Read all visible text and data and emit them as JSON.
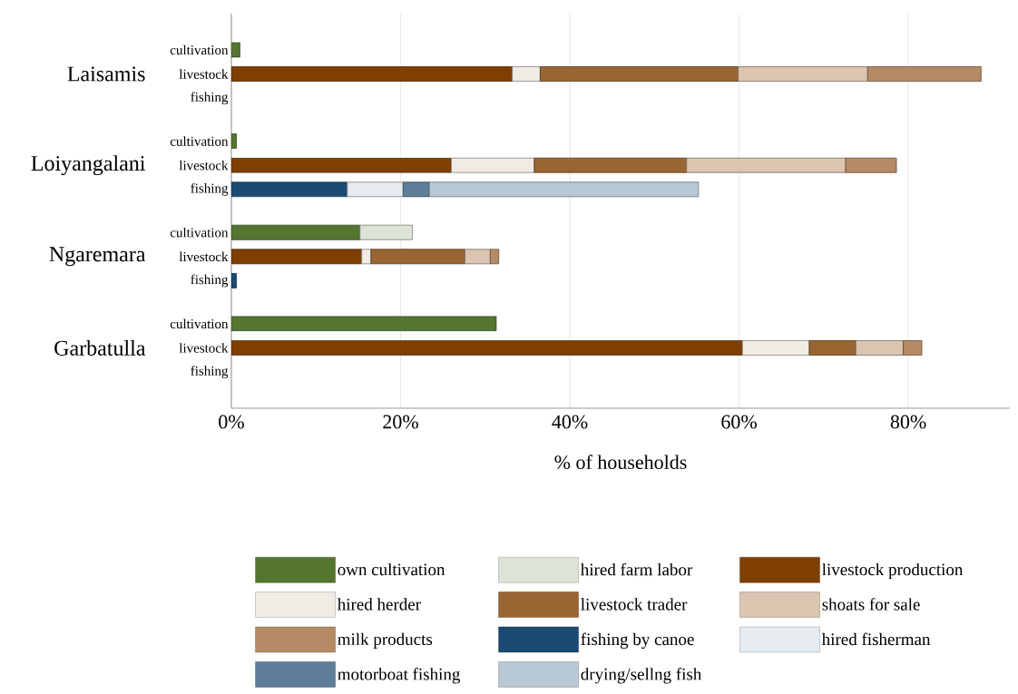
{
  "chart_data": {
    "type": "bar",
    "orientation": "horizontal",
    "stacked": true,
    "xlabel": "% of households",
    "categories": [
      "cultivation",
      "livestock",
      "fishing",
      "cultivation",
      "livestock",
      "fishing",
      "cultivation",
      "livestock",
      "fishing",
      "cultivation",
      "livestock",
      "fishing"
    ],
    "annotations": [
      "Laisamis",
      "Loiyangalani",
      "Ngaremara",
      "Garbatulla"
    ],
    "xlim": [
      0,
      92
    ],
    "xticks": [
      {
        "value": 0,
        "label": "0%"
      },
      {
        "value": 20,
        "label": "20%"
      },
      {
        "value": 40,
        "label": "40%"
      },
      {
        "value": 60,
        "label": "60%"
      },
      {
        "value": 80,
        "label": "80%"
      }
    ],
    "grid": "x",
    "legend": "bottom",
    "series": [
      {
        "name": "own cultivation",
        "color": "#557630",
        "values": [
          1.0,
          null,
          null,
          0.6,
          null,
          null,
          15.2,
          null,
          null,
          31.3,
          null,
          null
        ]
      },
      {
        "name": "hired farm labor",
        "color": "#dde3d6",
        "values": [
          null,
          null,
          null,
          null,
          null,
          null,
          6.2,
          null,
          null,
          null,
          null,
          null
        ]
      },
      {
        "name": "livestock production",
        "color": "#7f3f00",
        "values": [
          null,
          33.2,
          null,
          null,
          26.0,
          null,
          null,
          15.4,
          null,
          null,
          60.4,
          null
        ]
      },
      {
        "name": "hired herder",
        "color": "#f0ebe5",
        "values": [
          null,
          3.3,
          null,
          null,
          9.8,
          null,
          null,
          1.1,
          null,
          null,
          7.9,
          null
        ]
      },
      {
        "name": "livestock trader",
        "color": "#996633",
        "values": [
          null,
          23.4,
          null,
          null,
          18.0,
          null,
          null,
          11.1,
          null,
          null,
          5.5,
          null
        ]
      },
      {
        "name": "shoats for sale",
        "color": "#dbc5b0",
        "values": [
          null,
          15.3,
          null,
          null,
          18.8,
          null,
          null,
          3.0,
          null,
          null,
          5.6,
          null
        ]
      },
      {
        "name": "milk products",
        "color": "#b58b65",
        "values": [
          null,
          13.4,
          null,
          null,
          6.0,
          null,
          null,
          1.0,
          null,
          null,
          2.2,
          null
        ]
      },
      {
        "name": "fishing by canoe",
        "color": "#1b4a73",
        "values": [
          null,
          null,
          null,
          null,
          null,
          13.7,
          null,
          null,
          0.6,
          null,
          null,
          null
        ]
      },
      {
        "name": "hired fisherman",
        "color": "#e5ebef",
        "values": [
          null,
          null,
          null,
          null,
          null,
          6.6,
          null,
          null,
          null,
          null,
          null,
          null
        ]
      },
      {
        "name": "motorboat fishing",
        "color": "#5e7d99",
        "values": [
          null,
          null,
          null,
          null,
          null,
          3.1,
          null,
          null,
          null,
          null,
          null,
          null
        ]
      },
      {
        "name": "drying/sellng fish",
        "color": "#b9c8d5",
        "values": [
          null,
          null,
          null,
          null,
          null,
          31.8,
          null,
          null,
          null,
          null,
          null,
          null
        ]
      }
    ]
  }
}
